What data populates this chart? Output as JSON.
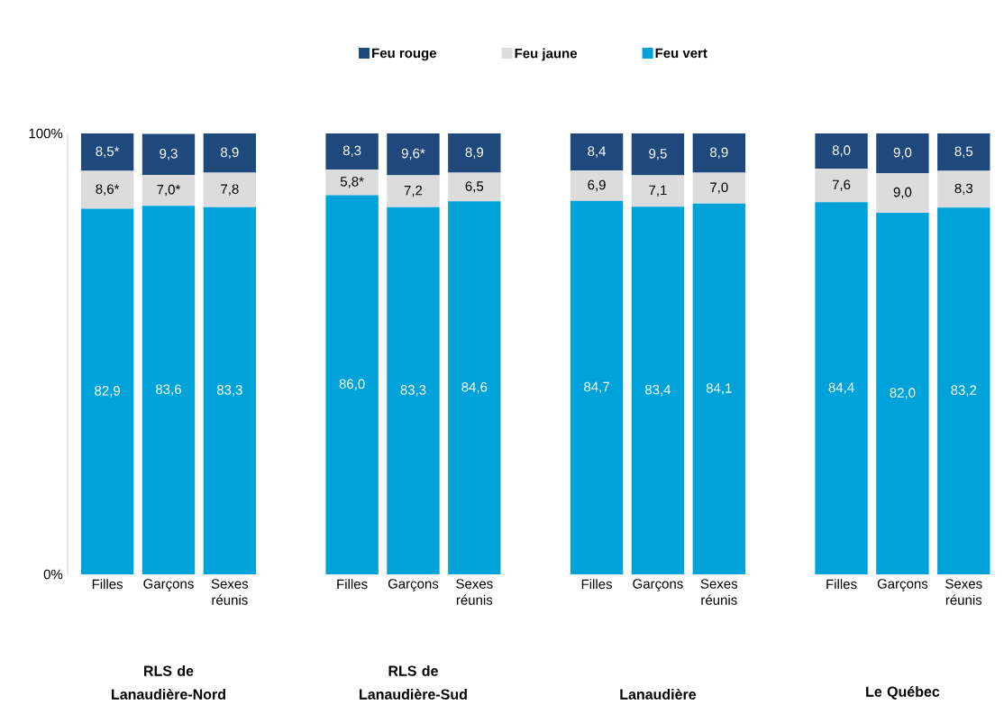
{
  "chart_data": {
    "type": "bar",
    "stacked": true,
    "categories": [
      "Filles",
      "Garçons",
      "Sexes réunis",
      null,
      "Filles",
      "Garçons",
      "Sexes réunis",
      null,
      "Filles",
      "Garçons",
      "Sexes réunis",
      null,
      "Filles",
      "Garçons",
      "Sexes réunis"
    ],
    "series": [
      {
        "name": "Feu vert",
        "color": "#00a3d9",
        "values": [
          82.9,
          83.6,
          83.3,
          null,
          86.0,
          83.3,
          84.6,
          null,
          84.7,
          83.4,
          84.1,
          null,
          84.4,
          82.0,
          83.2
        ],
        "value_labels": [
          "82,9",
          "83,6",
          "83,3",
          null,
          "86,0",
          "83,3",
          "84,6",
          null,
          "84,7",
          "83,4",
          "84,1",
          null,
          "84,4",
          "82,0",
          "83,2"
        ]
      },
      {
        "name": "Feu jaune",
        "color": "#dcdcdc",
        "values": [
          8.6,
          7.0,
          7.8,
          null,
          5.8,
          7.2,
          6.5,
          null,
          6.9,
          7.1,
          7.0,
          null,
          7.6,
          9.0,
          8.3
        ],
        "value_labels": [
          "8,6*",
          "7,0*",
          "7,8",
          null,
          "5,8*",
          "7,2",
          "6,5",
          null,
          "6,9",
          "7,1",
          "7,0",
          null,
          "7,6",
          "9,0",
          "8,3"
        ]
      },
      {
        "name": "Feu rouge",
        "color": "#1f497d",
        "values": [
          8.5,
          9.3,
          8.9,
          null,
          8.3,
          9.6,
          8.9,
          null,
          8.4,
          9.5,
          8.9,
          null,
          8.0,
          9.0,
          8.5
        ],
        "value_labels": [
          "8,5*",
          "9,3",
          "8,9",
          null,
          "8,3",
          "9,6*",
          "8,9",
          null,
          "8,4",
          "9,5",
          "8,9",
          null,
          "8,0",
          "9,0",
          "8,5"
        ]
      }
    ],
    "ylim": [
      0,
      100
    ],
    "yticks": [
      {
        "value": 0,
        "label": "0%"
      },
      {
        "value": 100,
        "label": "100%"
      }
    ],
    "legend": "top",
    "grid": false,
    "annotations": [
      "RLS de Lanaudière-Nord",
      "RLS de Lanaudière-Sud",
      "Lanaudière",
      "Le Québec"
    ]
  }
}
